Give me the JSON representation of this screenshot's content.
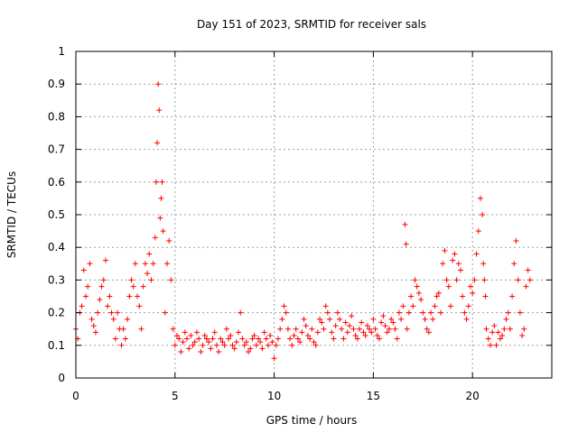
{
  "chart_data": {
    "type": "scatter",
    "title": "Day 151 of 2023, SRMTID for receiver sals",
    "xlabel": "GPS time / hours",
    "ylabel": "SRMTID / TECUs",
    "xlim": [
      0,
      24
    ],
    "ylim": [
      0,
      1
    ],
    "xticks": [
      0,
      5,
      10,
      15,
      20
    ],
    "xtick_labels": [
      "0",
      "5",
      "10",
      "15",
      "20"
    ],
    "yticks": [
      0,
      0.1,
      0.2,
      0.3,
      0.4,
      0.5,
      0.6,
      0.7,
      0.8,
      0.9,
      1
    ],
    "ytick_labels": [
      "0",
      "0.1",
      "0.2",
      "0.3",
      "0.4",
      "0.5",
      "0.6",
      "0.7",
      "0.8",
      "0.9",
      "1"
    ],
    "grid": true,
    "marker": "+",
    "color": "#ff0000",
    "series": [
      {
        "name": "SRMTID",
        "x": [
          0.0,
          0.1,
          0.2,
          0.3,
          0.4,
          0.5,
          0.6,
          0.7,
          0.8,
          0.9,
          1.0,
          1.1,
          1.2,
          1.3,
          1.4,
          1.5,
          1.6,
          1.7,
          1.8,
          1.9,
          2.0,
          2.1,
          2.2,
          2.3,
          2.4,
          2.5,
          2.6,
          2.7,
          2.8,
          2.9,
          3.0,
          3.1,
          3.2,
          3.3,
          3.4,
          3.5,
          3.6,
          3.7,
          3.8,
          3.9,
          4.0,
          4.05,
          4.1,
          4.15,
          4.2,
          4.25,
          4.3,
          4.35,
          4.4,
          4.5,
          4.6,
          4.7,
          4.8,
          4.9,
          5.0,
          5.1,
          5.2,
          5.3,
          5.4,
          5.5,
          5.6,
          5.7,
          5.8,
          5.9,
          6.0,
          6.1,
          6.2,
          6.3,
          6.4,
          6.5,
          6.6,
          6.7,
          6.8,
          6.9,
          7.0,
          7.1,
          7.2,
          7.3,
          7.4,
          7.5,
          7.6,
          7.7,
          7.8,
          7.9,
          8.0,
          8.1,
          8.2,
          8.3,
          8.4,
          8.5,
          8.6,
          8.7,
          8.8,
          8.9,
          9.0,
          9.1,
          9.2,
          9.3,
          9.4,
          9.5,
          9.6,
          9.7,
          9.8,
          9.9,
          10.0,
          10.1,
          10.2,
          10.3,
          10.4,
          10.5,
          10.6,
          10.7,
          10.8,
          10.9,
          11.0,
          11.1,
          11.2,
          11.3,
          11.4,
          11.5,
          11.6,
          11.7,
          11.8,
          11.9,
          12.0,
          12.1,
          12.2,
          12.3,
          12.4,
          12.5,
          12.6,
          12.7,
          12.8,
          12.9,
          13.0,
          13.1,
          13.2,
          13.3,
          13.4,
          13.5,
          13.6,
          13.7,
          13.8,
          13.9,
          14.0,
          14.1,
          14.2,
          14.3,
          14.4,
          14.5,
          14.6,
          14.7,
          14.8,
          14.9,
          15.0,
          15.1,
          15.2,
          15.3,
          15.4,
          15.5,
          15.6,
          15.7,
          15.8,
          15.9,
          16.0,
          16.1,
          16.2,
          16.3,
          16.4,
          16.5,
          16.6,
          16.65,
          16.7,
          16.8,
          16.9,
          17.0,
          17.1,
          17.2,
          17.3,
          17.4,
          17.5,
          17.6,
          17.7,
          17.8,
          17.9,
          18.0,
          18.1,
          18.2,
          18.3,
          18.4,
          18.5,
          18.6,
          18.7,
          18.8,
          18.9,
          19.0,
          19.1,
          19.2,
          19.3,
          19.4,
          19.5,
          19.6,
          19.7,
          19.8,
          19.9,
          20.0,
          20.1,
          20.2,
          20.3,
          20.4,
          20.5,
          20.55,
          20.6,
          20.65,
          20.7,
          20.8,
          20.9,
          21.0,
          21.1,
          21.2,
          21.3,
          21.4,
          21.5,
          21.6,
          21.7,
          21.8,
          21.9,
          22.0,
          22.1,
          22.2,
          22.3,
          22.4,
          22.5,
          22.6,
          22.7,
          22.8,
          22.9
        ],
        "y": [
          0.15,
          0.12,
          0.2,
          0.22,
          0.33,
          0.25,
          0.28,
          0.35,
          0.18,
          0.16,
          0.14,
          0.2,
          0.24,
          0.28,
          0.3,
          0.36,
          0.22,
          0.25,
          0.2,
          0.18,
          0.12,
          0.2,
          0.15,
          0.1,
          0.15,
          0.12,
          0.18,
          0.25,
          0.3,
          0.28,
          0.35,
          0.25,
          0.22,
          0.15,
          0.28,
          0.35,
          0.32,
          0.38,
          0.3,
          0.35,
          0.43,
          0.6,
          0.72,
          0.9,
          0.82,
          0.49,
          0.55,
          0.6,
          0.45,
          0.2,
          0.35,
          0.42,
          0.3,
          0.15,
          0.1,
          0.13,
          0.12,
          0.08,
          0.11,
          0.14,
          0.12,
          0.09,
          0.13,
          0.1,
          0.11,
          0.14,
          0.12,
          0.08,
          0.1,
          0.13,
          0.12,
          0.11,
          0.09,
          0.12,
          0.14,
          0.1,
          0.08,
          0.12,
          0.11,
          0.1,
          0.15,
          0.12,
          0.13,
          0.1,
          0.09,
          0.11,
          0.14,
          0.2,
          0.12,
          0.1,
          0.11,
          0.08,
          0.09,
          0.12,
          0.13,
          0.1,
          0.12,
          0.11,
          0.09,
          0.14,
          0.12,
          0.1,
          0.13,
          0.11,
          0.06,
          0.1,
          0.12,
          0.15,
          0.18,
          0.22,
          0.2,
          0.15,
          0.12,
          0.1,
          0.13,
          0.15,
          0.12,
          0.11,
          0.14,
          0.18,
          0.16,
          0.13,
          0.12,
          0.15,
          0.11,
          0.1,
          0.14,
          0.18,
          0.17,
          0.15,
          0.22,
          0.2,
          0.18,
          0.14,
          0.12,
          0.16,
          0.2,
          0.18,
          0.15,
          0.12,
          0.17,
          0.14,
          0.16,
          0.19,
          0.15,
          0.13,
          0.12,
          0.15,
          0.17,
          0.14,
          0.13,
          0.16,
          0.15,
          0.14,
          0.18,
          0.15,
          0.13,
          0.12,
          0.17,
          0.19,
          0.16,
          0.14,
          0.15,
          0.18,
          0.17,
          0.15,
          0.12,
          0.2,
          0.18,
          0.22,
          0.47,
          0.41,
          0.15,
          0.2,
          0.25,
          0.22,
          0.3,
          0.28,
          0.26,
          0.24,
          0.2,
          0.18,
          0.15,
          0.14,
          0.2,
          0.18,
          0.22,
          0.25,
          0.26,
          0.2,
          0.35,
          0.39,
          0.3,
          0.28,
          0.22,
          0.36,
          0.38,
          0.3,
          0.35,
          0.33,
          0.25,
          0.2,
          0.18,
          0.22,
          0.28,
          0.26,
          0.3,
          0.38,
          0.45,
          0.55,
          0.5,
          0.35,
          0.3,
          0.25,
          0.15,
          0.12,
          0.1,
          0.14,
          0.16,
          0.1,
          0.14,
          0.12,
          0.13,
          0.15,
          0.18,
          0.2,
          0.15,
          0.25,
          0.35,
          0.42,
          0.3,
          0.2,
          0.13,
          0.15,
          0.28,
          0.33,
          0.3
        ]
      }
    ]
  }
}
